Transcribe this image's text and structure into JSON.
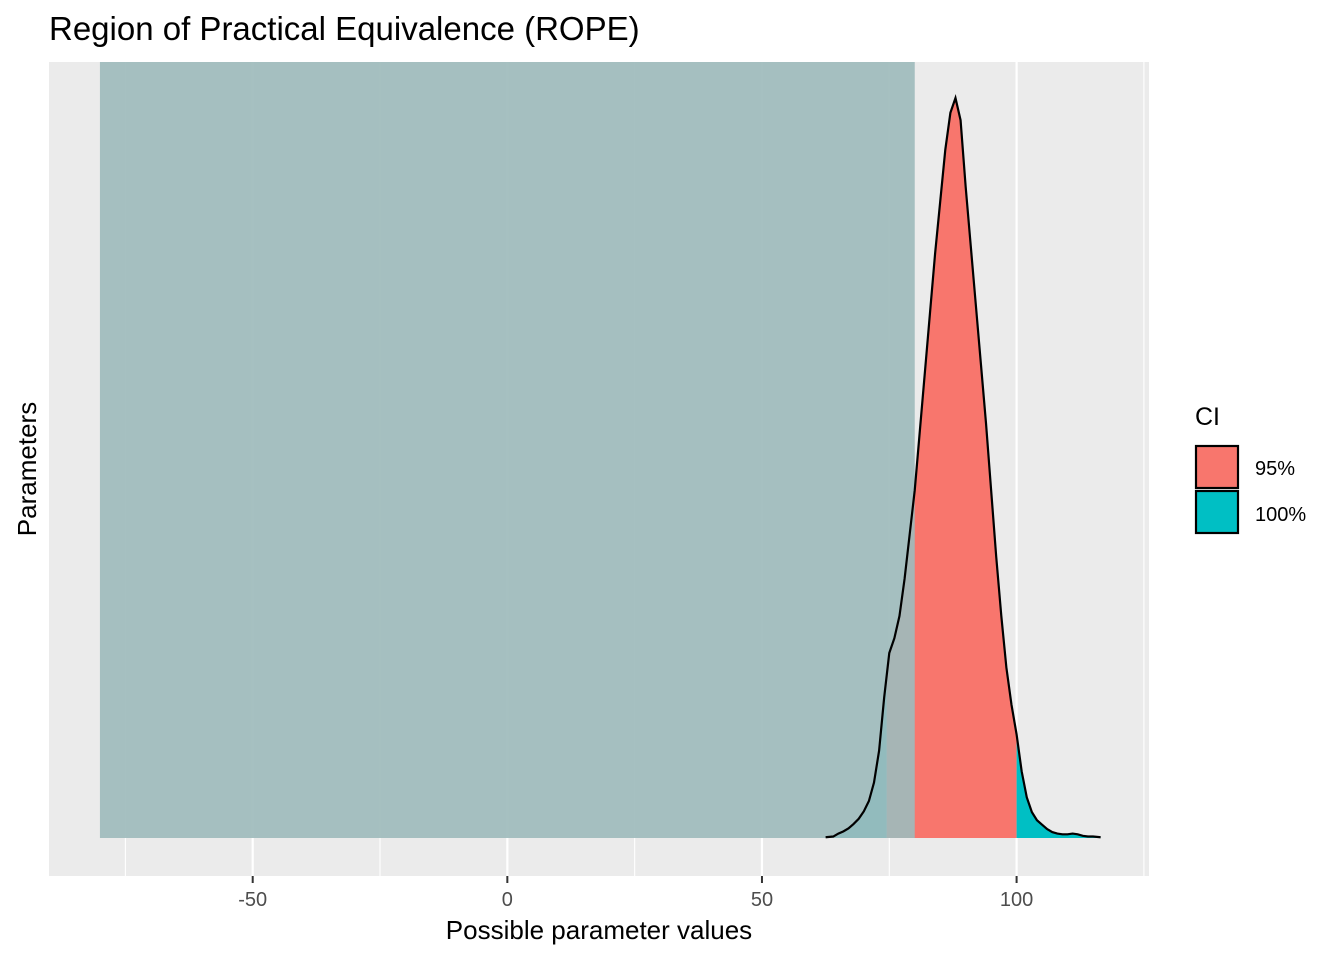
{
  "chart_data": {
    "type": "area",
    "title": "Region of Practical Equivalence (ROPE)",
    "xlabel": "Possible parameter values",
    "ylabel": "Parameters",
    "xlim": [
      -90,
      126
    ],
    "x_ticks": [
      -50,
      0,
      50,
      100
    ],
    "x_tick_labels": [
      "-50",
      "0",
      "50",
      "100"
    ],
    "x_minor_ticks": [
      -75,
      -25,
      25,
      75,
      125
    ],
    "grid": true,
    "rope": {
      "low": -80,
      "high": 80,
      "color": "#9ebbbc"
    },
    "ci_95": {
      "low": 74.5,
      "high": 100
    },
    "density": {
      "x": [
        62.5,
        64,
        65,
        66,
        67,
        68,
        69,
        70,
        71,
        72,
        73,
        74,
        75,
        76,
        77,
        78,
        79,
        80,
        81,
        82,
        83,
        84,
        85,
        86,
        87,
        88,
        89,
        90,
        91,
        92,
        93,
        94,
        95,
        96,
        97,
        98,
        99,
        100,
        101,
        102,
        103,
        104,
        105,
        106,
        107,
        108,
        109,
        110,
        111,
        112,
        113,
        114,
        115,
        116.5
      ],
      "y": [
        0.001,
        0.002,
        0.006,
        0.009,
        0.013,
        0.019,
        0.026,
        0.036,
        0.05,
        0.075,
        0.118,
        0.19,
        0.25,
        0.27,
        0.3,
        0.35,
        0.41,
        0.47,
        0.55,
        0.63,
        0.71,
        0.79,
        0.86,
        0.93,
        0.98,
        1.0,
        0.97,
        0.88,
        0.8,
        0.72,
        0.64,
        0.56,
        0.47,
        0.38,
        0.3,
        0.23,
        0.18,
        0.14,
        0.09,
        0.055,
        0.035,
        0.024,
        0.018,
        0.012,
        0.008,
        0.006,
        0.005,
        0.005,
        0.006,
        0.005,
        0.003,
        0.002,
        0.002,
        0.001
      ]
    },
    "legend": {
      "title": "CI",
      "position": "right",
      "items": [
        {
          "label": "95%",
          "color": "#f8766d"
        },
        {
          "label": "100%",
          "color": "#00bfc4"
        }
      ]
    },
    "colors": {
      "panel_bg": "#ebebeb",
      "grid_major": "#ffffff",
      "ci_95": "#f8766d",
      "ci_100": "#00bfc4",
      "outline": "#000000"
    }
  }
}
